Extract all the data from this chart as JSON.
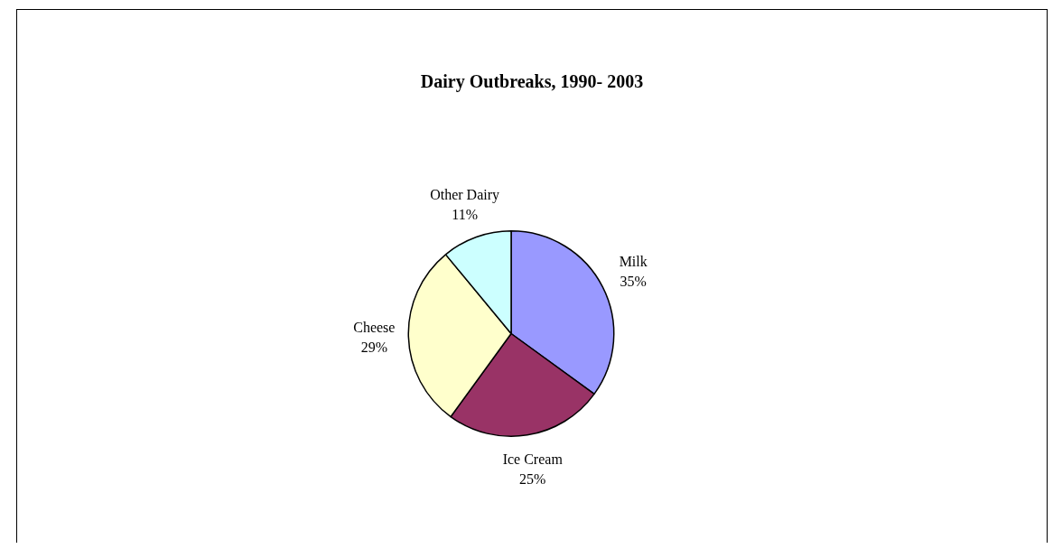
{
  "chart_data": {
    "type": "pie",
    "title": "Dairy Outbreaks, 1990- 2003",
    "categories": [
      "Milk",
      "Ice Cream",
      "Cheese",
      "Other Dairy"
    ],
    "values": [
      35,
      25,
      29,
      11
    ],
    "colors": [
      "#9999ff",
      "#993366",
      "#ffffcc",
      "#ccffff"
    ],
    "value_labels": [
      "35%",
      "25%",
      "29%",
      "11%"
    ],
    "legend": false
  }
}
